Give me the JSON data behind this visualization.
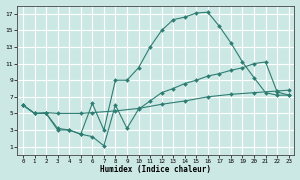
{
  "xlabel": "Humidex (Indice chaleur)",
  "bg_color": "#cce8e5",
  "grid_color": "#ffffff",
  "line_color": "#2e7d72",
  "line1_x": [
    0,
    1,
    2,
    3,
    4,
    5,
    6,
    7,
    8,
    9,
    10,
    11,
    12,
    13,
    14,
    15,
    16,
    17,
    18,
    19,
    20,
    21,
    22,
    23
  ],
  "line1_y": [
    6.0,
    5.0,
    5.0,
    3.0,
    3.0,
    2.5,
    6.2,
    3.0,
    9.0,
    9.0,
    10.5,
    13.0,
    15.0,
    16.3,
    16.6,
    17.1,
    17.2,
    15.5,
    13.5,
    11.2,
    9.3,
    7.5,
    7.2,
    7.2
  ],
  "line2_x": [
    0,
    1,
    2,
    3,
    5,
    6,
    8,
    10,
    12,
    14,
    16,
    18,
    20,
    22,
    23
  ],
  "line2_y": [
    6.0,
    5.0,
    5.1,
    5.0,
    5.0,
    5.1,
    5.3,
    5.6,
    6.1,
    6.5,
    7.0,
    7.3,
    7.5,
    7.7,
    7.8
  ],
  "line3_x": [
    0,
    1,
    2,
    3,
    4,
    5,
    6,
    7,
    8,
    9,
    10,
    11,
    12,
    13,
    14,
    15,
    16,
    17,
    18,
    19,
    20,
    21,
    22,
    23
  ],
  "line3_y": [
    6.0,
    5.0,
    5.0,
    3.2,
    3.0,
    2.5,
    2.2,
    1.1,
    6.0,
    3.2,
    5.5,
    6.5,
    7.5,
    8.0,
    8.6,
    9.0,
    9.5,
    9.8,
    10.2,
    10.5,
    11.0,
    11.2,
    7.6,
    7.2
  ],
  "ylim": [
    0,
    18
  ],
  "xlim": [
    -0.5,
    23.5
  ],
  "yticks": [
    1,
    3,
    5,
    7,
    9,
    11,
    13,
    15,
    17
  ],
  "xticks": [
    0,
    1,
    2,
    3,
    4,
    5,
    6,
    7,
    8,
    9,
    10,
    11,
    12,
    13,
    14,
    15,
    16,
    17,
    18,
    19,
    20,
    21,
    22,
    23
  ]
}
